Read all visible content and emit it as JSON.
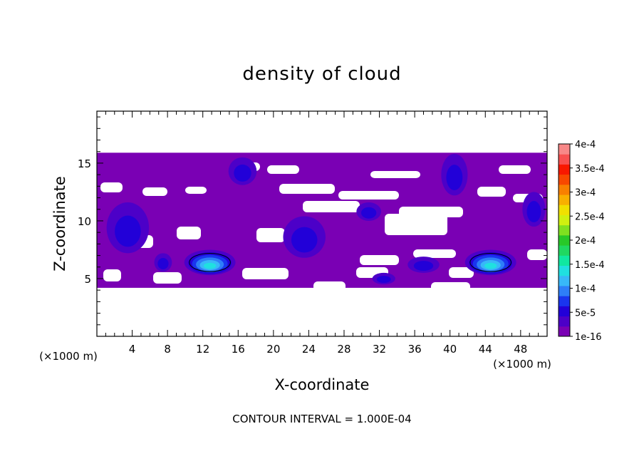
{
  "chart_data": {
    "type": "heatmap",
    "title": "density of cloud",
    "xlabel": "X-coordinate",
    "ylabel": "Z-coordinate",
    "x_unit": "(×1000 m)",
    "z_unit": "(×1000 m)",
    "footer": "CONTOUR INTERVAL = 1.000E-04",
    "xlim": [
      0,
      51
    ],
    "ylim": [
      0,
      19.5
    ],
    "x_ticks": [
      4,
      8,
      12,
      16,
      20,
      24,
      28,
      32,
      36,
      40,
      44,
      48
    ],
    "y_ticks": [
      5,
      10,
      15
    ],
    "colorbar": {
      "labels": [
        "1e-16",
        "5e-5",
        "1e-4",
        "1.5e-4",
        "2e-4",
        "2.5e-4",
        "3e-4",
        "3.5e-4",
        "4e-4"
      ],
      "colors": [
        "#7a00b4",
        "#4c00c8",
        "#2200d8",
        "#1a35ee",
        "#2e7ef8",
        "#38b8f8",
        "#20e0e0",
        "#10e8a0",
        "#20d860",
        "#28c828",
        "#80e020",
        "#d0f010",
        "#f0e000",
        "#f8b000",
        "#f88000",
        "#f84800",
        "#f81800",
        "#f85050",
        "#f88888"
      ]
    },
    "cloud_layer": {
      "z_range": [
        4.2,
        15.9
      ],
      "base_level": "1e-16"
    },
    "cores": [
      {
        "x": 12.8,
        "z": 6.4,
        "rx": 2.9,
        "rz": 1.1,
        "max_level": "1.5e-4"
      },
      {
        "x": 44.6,
        "z": 6.4,
        "rx": 2.9,
        "rz": 1.1,
        "max_level": "1.5e-4"
      },
      {
        "x": 23.5,
        "z": 8.6,
        "rx": 2.4,
        "rz": 1.8,
        "max_level": "5e-5"
      },
      {
        "x": 3.5,
        "z": 9.4,
        "rx": 2.4,
        "rz": 2.2,
        "max_level": "5e-5"
      },
      {
        "x": 37.0,
        "z": 6.2,
        "rx": 1.8,
        "rz": 0.7,
        "max_level": "5e-5"
      },
      {
        "x": 40.5,
        "z": 14.0,
        "rx": 1.5,
        "rz": 1.8,
        "max_level": "5e-5"
      },
      {
        "x": 49.5,
        "z": 11.0,
        "rx": 1.3,
        "rz": 1.5,
        "max_level": "5e-5"
      },
      {
        "x": 7.5,
        "z": 6.4,
        "rx": 1.0,
        "rz": 0.8,
        "max_level": "5e-5"
      },
      {
        "x": 16.5,
        "z": 14.3,
        "rx": 1.6,
        "rz": 1.2,
        "max_level": "5e-5"
      },
      {
        "x": 32.5,
        "z": 5.0,
        "rx": 1.3,
        "rz": 0.5,
        "max_level": "5e-5"
      },
      {
        "x": 30.8,
        "z": 10.8,
        "rx": 1.4,
        "rz": 0.8,
        "max_level": "5e-5"
      }
    ]
  }
}
